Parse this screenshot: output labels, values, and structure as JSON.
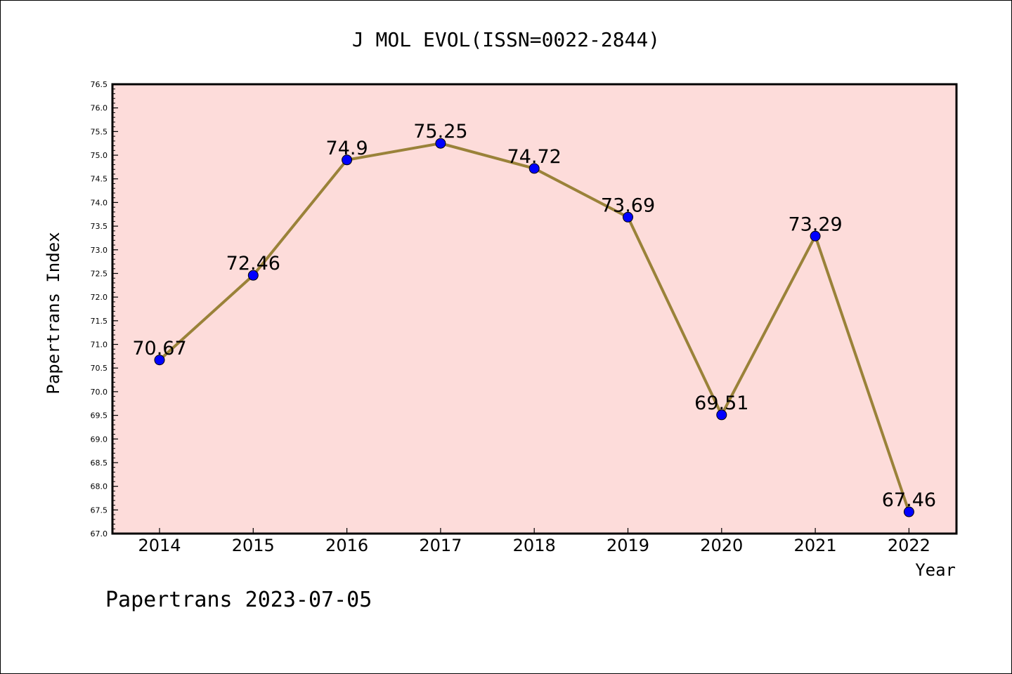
{
  "chart_data": {
    "type": "line",
    "title": "J MOL EVOL(ISSN=0022-2844)",
    "xlabel": "Year",
    "ylabel": "Papertrans Index",
    "categories": [
      "2014",
      "2015",
      "2016",
      "2017",
      "2018",
      "2019",
      "2020",
      "2021",
      "2022"
    ],
    "series": [
      {
        "values": [
          70.67,
          72.46,
          74.9,
          75.25,
          74.72,
          73.69,
          69.51,
          73.29,
          67.46
        ],
        "data_labels": [
          "70.67",
          "72.46",
          "74.9",
          "75.25",
          "74.72",
          "73.69",
          "69.51",
          "73.29",
          "67.46"
        ]
      }
    ],
    "ylim": [
      67.0,
      76.5
    ],
    "yticks": [
      "67.0",
      "67.5",
      "68.0",
      "68.5",
      "69.0",
      "69.5",
      "70.0",
      "70.5",
      "71.0",
      "71.5",
      "72.0",
      "72.5",
      "73.0",
      "73.5",
      "74.0",
      "74.5",
      "75.0",
      "75.5",
      "76.0",
      "76.5"
    ],
    "grid": false,
    "colors": {
      "plot_background": "#fddcda",
      "line": "#9a8239",
      "marker": "#0000ff"
    }
  },
  "footer": "Papertrans 2023-07-05"
}
